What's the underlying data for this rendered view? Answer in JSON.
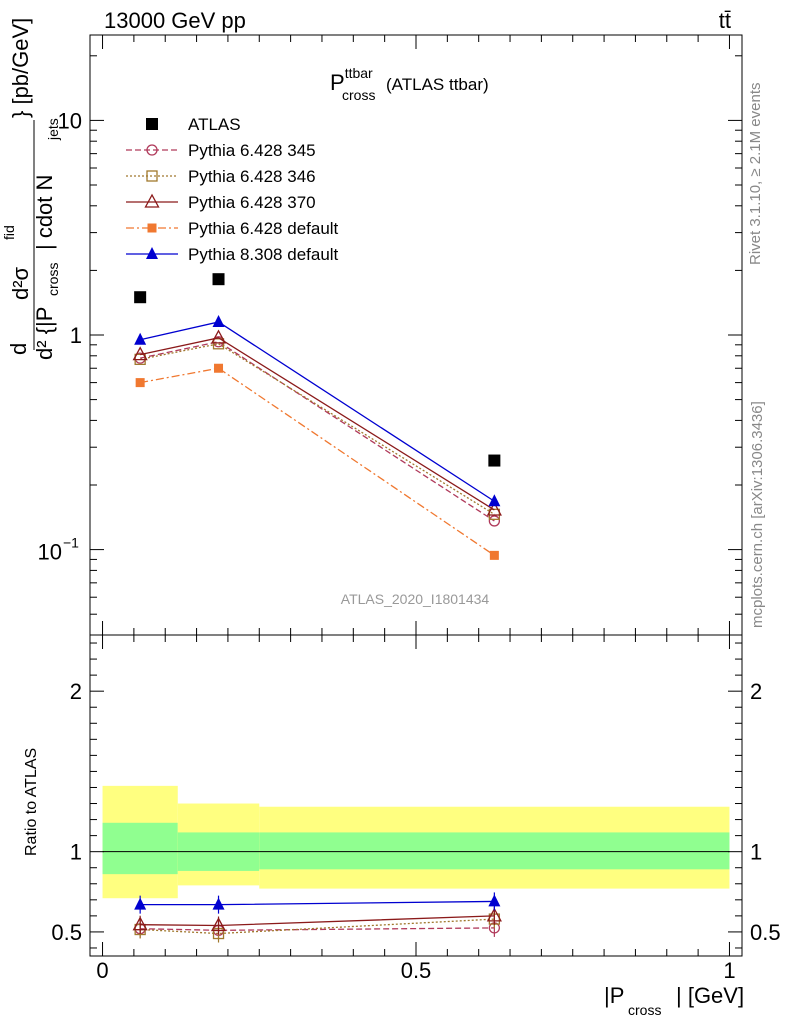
{
  "header": {
    "left": "13000 GeV pp",
    "right": "tt̄"
  },
  "side_labels": {
    "rivet": "Rivet 3.1.10, ≥ 2.1M events",
    "mcplots": "mcplots.cern.ch [arXiv:1306.3436]"
  },
  "chart_data": [
    {
      "type": "line",
      "title": "P",
      "title_sup": "ttbar",
      "title_sub": "cross",
      "title_suffix": "(ATLAS ttbar)",
      "watermark": "ATLAS_2020_I1801434",
      "y_scale": "log",
      "ylim": [
        0.04,
        25
      ],
      "xlim": [
        -0.02,
        1.02
      ],
      "y_tick_labels": [
        "10",
        "1",
        "10"
      ],
      "y_tick_exp": "−1",
      "ylabel_parts": {
        "d": "d",
        "num": "d²σ",
        "num_sup": "fid",
        "den_pre": "d² {|P",
        "den_sub1": "cross",
        "den_mid": "| cdot N",
        "den_sub2": "jets",
        "tail": "} [pb/GeV]"
      },
      "x": [
        0.06,
        0.185,
        0.625
      ],
      "series": [
        {
          "name": "ATLAS",
          "values": [
            1.5,
            1.82,
            0.26
          ],
          "color": "#000000",
          "marker": "square-filled",
          "line": "none"
        },
        {
          "name": "Pythia 6.428 345",
          "values": [
            0.78,
            0.93,
            0.136
          ],
          "color": "#b03a5b",
          "marker": "circle-open",
          "line": "dashed"
        },
        {
          "name": "Pythia 6.428 346",
          "values": [
            0.77,
            0.91,
            0.146
          ],
          "color": "#a0782d",
          "marker": "square-open",
          "line": "dotted"
        },
        {
          "name": "Pythia 6.428 370",
          "values": [
            0.81,
            0.97,
            0.153
          ],
          "color": "#8b1a1a",
          "marker": "triangle-open",
          "line": "solid"
        },
        {
          "name": "Pythia 6.428 default",
          "values": [
            0.6,
            0.7,
            0.094
          ],
          "color": "#f07830",
          "marker": "square-filled-small",
          "line": "dashdot"
        },
        {
          "name": "Pythia 8.308 default",
          "values": [
            0.95,
            1.15,
            0.168
          ],
          "color": "#0000d0",
          "marker": "triangle-filled",
          "line": "solid"
        }
      ]
    },
    {
      "type": "line",
      "ylabel": "Ratio to ATLAS",
      "xlabel_pre": "|P",
      "xlabel_sub": "cross",
      "xlabel_post": "| [GeV]",
      "ylim": [
        0.35,
        2.35
      ],
      "xlim": [
        -0.02,
        1.02
      ],
      "y_tick_labels": [
        "0.5",
        "1",
        "2"
      ],
      "x_tick_labels": [
        "0",
        "0.5",
        "1"
      ],
      "bands": [
        {
          "x0": 0.0,
          "x1": 0.12,
          "outer": [
            0.71,
            1.41
          ],
          "inner": [
            0.86,
            1.18
          ]
        },
        {
          "x0": 0.12,
          "x1": 0.25,
          "outer": [
            0.79,
            1.3
          ],
          "inner": [
            0.88,
            1.12
          ]
        },
        {
          "x0": 0.25,
          "x1": 1.0,
          "outer": [
            0.77,
            1.28
          ],
          "inner": [
            0.89,
            1.12
          ]
        }
      ],
      "band_colors": {
        "outer": "#ffff80",
        "inner": "#90ff90"
      },
      "x": [
        0.06,
        0.185,
        0.625
      ],
      "series": [
        {
          "name": "Pythia 6.428 345",
          "values": [
            0.52,
            0.51,
            0.525
          ],
          "color": "#b03a5b",
          "marker": "circle-open",
          "line": "dashed"
        },
        {
          "name": "Pythia 6.428 346",
          "values": [
            0.515,
            0.49,
            0.58
          ],
          "color": "#a0782d",
          "marker": "square-open",
          "line": "dotted"
        },
        {
          "name": "Pythia 6.428 370",
          "values": [
            0.545,
            0.54,
            0.6
          ],
          "color": "#8b1a1a",
          "marker": "triangle-open",
          "line": "solid"
        },
        {
          "name": "Pythia 8.308 default",
          "values": [
            0.67,
            0.67,
            0.69
          ],
          "color": "#0000d0",
          "marker": "triangle-filled",
          "line": "solid"
        }
      ]
    }
  ]
}
